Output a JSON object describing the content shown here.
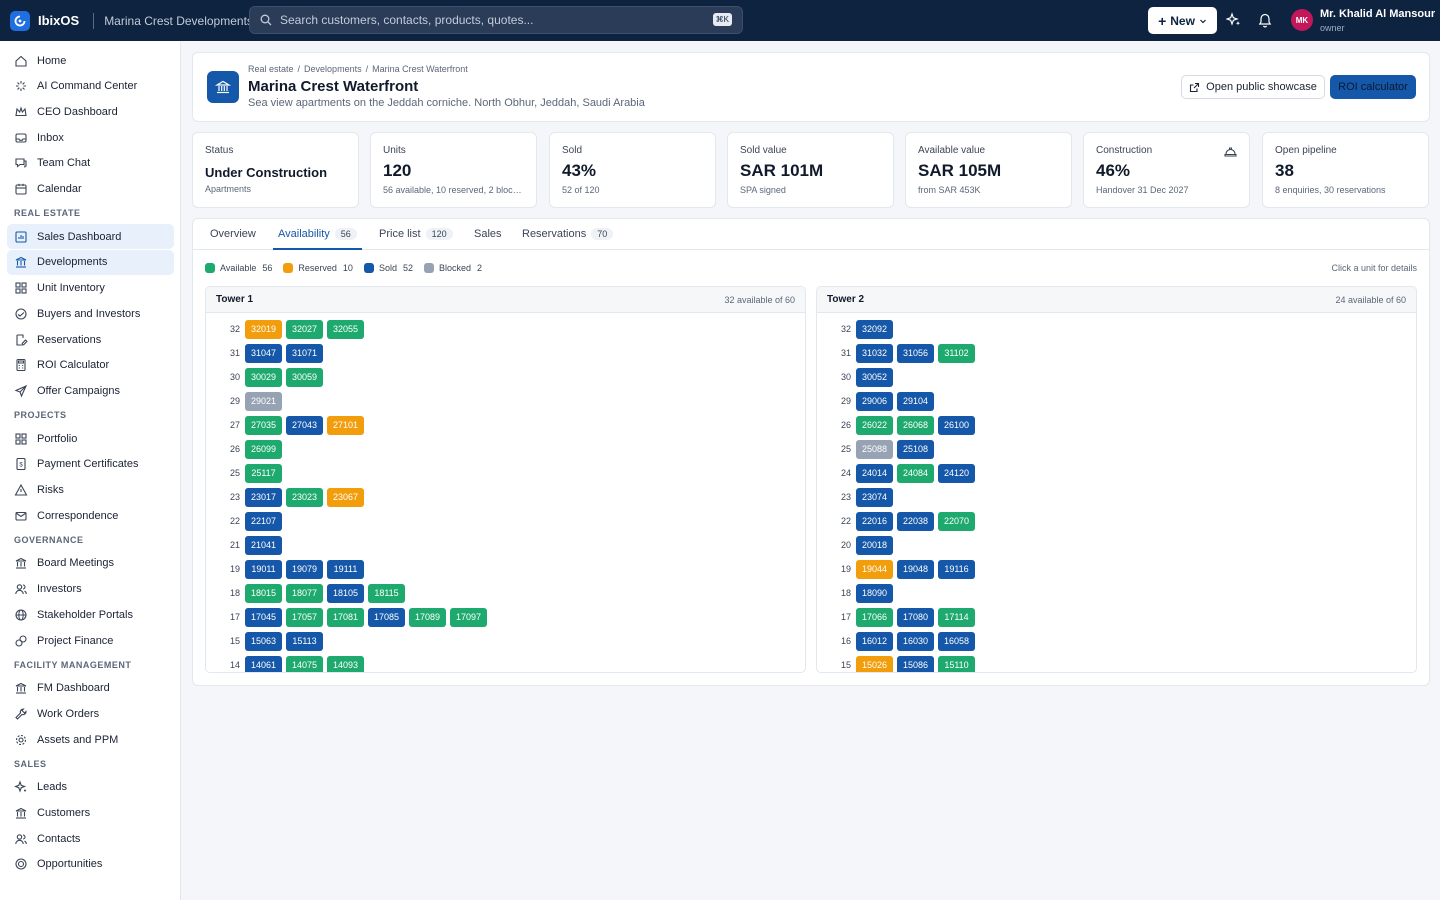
{
  "app": {
    "name": "IbixOS",
    "org": "Marina Crest Developments",
    "search_placeholder": "Search customers, contacts, products, quotes...",
    "search_shortcut": "⌘K",
    "new_label": "New",
    "user_initials": "MK",
    "user_name": "Mr. Khalid Al Mansour",
    "user_role": "owner"
  },
  "sidebar": {
    "top": [
      {
        "label": "Home",
        "icon": "home-icon"
      },
      {
        "label": "AI Command Center",
        "icon": "ai-icon"
      },
      {
        "label": "CEO Dashboard",
        "icon": "crown-icon"
      },
      {
        "label": "Inbox",
        "icon": "inbox-icon"
      },
      {
        "label": "Team Chat",
        "icon": "chat-icon"
      },
      {
        "label": "Calendar",
        "icon": "calendar-icon"
      }
    ],
    "sections": [
      {
        "title": "REAL ESTATE",
        "items": [
          {
            "label": "Sales Dashboard",
            "icon": "dashboard-icon",
            "active": true
          },
          {
            "label": "Developments",
            "icon": "building-icon",
            "active": true
          },
          {
            "label": "Unit Inventory",
            "icon": "grid-icon"
          },
          {
            "label": "Buyers and Investors",
            "icon": "handshake-icon"
          },
          {
            "label": "Reservations",
            "icon": "edit-icon"
          },
          {
            "label": "ROI Calculator",
            "icon": "calculator-icon"
          },
          {
            "label": "Offer Campaigns",
            "icon": "send-icon"
          }
        ]
      },
      {
        "title": "PROJECTS",
        "items": [
          {
            "label": "Portfolio",
            "icon": "grid-icon"
          },
          {
            "label": "Payment Certificates",
            "icon": "certificate-icon"
          },
          {
            "label": "Risks",
            "icon": "warning-icon"
          },
          {
            "label": "Correspondence",
            "icon": "mail-icon"
          }
        ]
      },
      {
        "title": "GOVERNANCE",
        "items": [
          {
            "label": "Board Meetings",
            "icon": "bank-icon"
          },
          {
            "label": "Investors",
            "icon": "users-icon"
          },
          {
            "label": "Stakeholder Portals",
            "icon": "globe-icon"
          },
          {
            "label": "Project Finance",
            "icon": "finance-icon"
          }
        ]
      },
      {
        "title": "FACILITY MANAGEMENT",
        "items": [
          {
            "label": "FM Dashboard",
            "icon": "building-icon"
          },
          {
            "label": "Work Orders",
            "icon": "wrench-icon"
          },
          {
            "label": "Assets and PPM",
            "icon": "gear-icon"
          }
        ]
      },
      {
        "title": "SALES",
        "items": [
          {
            "label": "Leads",
            "icon": "sparkle-icon"
          },
          {
            "label": "Customers",
            "icon": "building-icon"
          },
          {
            "label": "Contacts",
            "icon": "users-icon"
          },
          {
            "label": "Opportunities",
            "icon": "target-icon"
          }
        ]
      }
    ]
  },
  "header": {
    "breadcrumbs": [
      "Real estate",
      "/",
      "Developments",
      "/",
      "Marina Crest Waterfront"
    ],
    "title": "Marina Crest Waterfront",
    "subtitle": "Sea view apartments on the Jeddah corniche. North Obhur, Jeddah, Saudi Arabia",
    "open_showcase": "Open public showcase",
    "roi_button": "ROI calculator"
  },
  "stats": [
    {
      "label": "Status",
      "value": "Under Construction",
      "note": "Apartments"
    },
    {
      "label": "Units",
      "value": "120",
      "note": "56 available, 10 reserved, 2 blocked"
    },
    {
      "label": "Sold",
      "value": "43%",
      "note": "52 of 120"
    },
    {
      "label": "Sold value",
      "value": "SAR 101M",
      "note": "SPA signed"
    },
    {
      "label": "Available value",
      "value": "SAR 105M",
      "note": "from SAR 453K"
    },
    {
      "label": "Construction",
      "value": "46%",
      "note": "Handover 31 Dec 2027"
    },
    {
      "label": "Open pipeline",
      "value": "38",
      "note": "8 enquiries, 30 reservations"
    }
  ],
  "tabs": [
    {
      "label": "Overview",
      "badge": ""
    },
    {
      "label": "Availability",
      "badge": "56",
      "active": true
    },
    {
      "label": "Price list",
      "badge": "120"
    },
    {
      "label": "Sales",
      "badge": ""
    },
    {
      "label": "Reservations",
      "badge": "70"
    }
  ],
  "legend": [
    {
      "label": "Available",
      "count": "56",
      "color": "#1eaa6e"
    },
    {
      "label": "Reserved",
      "count": "10",
      "color": "#f29d0b"
    },
    {
      "label": "Sold",
      "count": "52",
      "color": "#1557a8"
    },
    {
      "label": "Blocked",
      "count": "2",
      "color": "#97a3b4"
    }
  ],
  "hint": "Click a unit for details",
  "towers": [
    {
      "name": "Tower 1",
      "availability": "32 available of 60",
      "floors": [
        {
          "floor": "32",
          "units": [
            [
              "32019",
              "reserved"
            ],
            [
              "32027",
              "available"
            ],
            [
              "32055",
              "available"
            ]
          ]
        },
        {
          "floor": "31",
          "units": [
            [
              "31047",
              "sold"
            ],
            [
              "31071",
              "sold"
            ]
          ]
        },
        {
          "floor": "30",
          "units": [
            [
              "30029",
              "available"
            ],
            [
              "30059",
              "available"
            ]
          ]
        },
        {
          "floor": "29",
          "units": [
            [
              "29021",
              "blocked"
            ]
          ]
        },
        {
          "floor": "27",
          "units": [
            [
              "27035",
              "available"
            ],
            [
              "27043",
              "sold"
            ],
            [
              "27101",
              "reserved"
            ]
          ]
        },
        {
          "floor": "26",
          "units": [
            [
              "26099",
              "available"
            ]
          ]
        },
        {
          "floor": "25",
          "units": [
            [
              "25117",
              "available"
            ]
          ]
        },
        {
          "floor": "23",
          "units": [
            [
              "23017",
              "sold"
            ],
            [
              "23023",
              "available"
            ],
            [
              "23067",
              "reserved"
            ]
          ]
        },
        {
          "floor": "22",
          "units": [
            [
              "22107",
              "sold"
            ]
          ]
        },
        {
          "floor": "21",
          "units": [
            [
              "21041",
              "sold"
            ]
          ]
        },
        {
          "floor": "19",
          "units": [
            [
              "19011",
              "sold"
            ],
            [
              "19079",
              "sold"
            ],
            [
              "19111",
              "sold"
            ]
          ]
        },
        {
          "floor": "18",
          "units": [
            [
              "18015",
              "available"
            ],
            [
              "18077",
              "available"
            ],
            [
              "18105",
              "sold"
            ],
            [
              "18115",
              "available"
            ]
          ]
        },
        {
          "floor": "17",
          "units": [
            [
              "17045",
              "sold"
            ],
            [
              "17057",
              "available"
            ],
            [
              "17081",
              "available"
            ],
            [
              "17085",
              "sold"
            ],
            [
              "17089",
              "available"
            ],
            [
              "17097",
              "available"
            ]
          ]
        },
        {
          "floor": "15",
          "units": [
            [
              "15063",
              "sold"
            ],
            [
              "15113",
              "sold"
            ]
          ]
        },
        {
          "floor": "14",
          "units": [
            [
              "14061",
              "sold"
            ],
            [
              "14075",
              "available"
            ],
            [
              "14093",
              "available"
            ]
          ]
        }
      ]
    },
    {
      "name": "Tower 2",
      "availability": "24 available of 60",
      "floors": [
        {
          "floor": "32",
          "units": [
            [
              "32092",
              "sold"
            ]
          ]
        },
        {
          "floor": "31",
          "units": [
            [
              "31032",
              "sold"
            ],
            [
              "31056",
              "sold"
            ],
            [
              "31102",
              "available"
            ]
          ]
        },
        {
          "floor": "30",
          "units": [
            [
              "30052",
              "sold"
            ]
          ]
        },
        {
          "floor": "29",
          "units": [
            [
              "29006",
              "sold"
            ],
            [
              "29104",
              "sold"
            ]
          ]
        },
        {
          "floor": "26",
          "units": [
            [
              "26022",
              "available"
            ],
            [
              "26068",
              "available"
            ],
            [
              "26100",
              "sold"
            ]
          ]
        },
        {
          "floor": "25",
          "units": [
            [
              "25088",
              "blocked"
            ],
            [
              "25108",
              "sold"
            ]
          ]
        },
        {
          "floor": "24",
          "units": [
            [
              "24014",
              "sold"
            ],
            [
              "24084",
              "available"
            ],
            [
              "24120",
              "sold"
            ]
          ]
        },
        {
          "floor": "23",
          "units": [
            [
              "23074",
              "sold"
            ]
          ]
        },
        {
          "floor": "22",
          "units": [
            [
              "22016",
              "sold"
            ],
            [
              "22038",
              "sold"
            ],
            [
              "22070",
              "available"
            ]
          ]
        },
        {
          "floor": "20",
          "units": [
            [
              "20018",
              "sold"
            ]
          ]
        },
        {
          "floor": "19",
          "units": [
            [
              "19044",
              "reserved"
            ],
            [
              "19048",
              "sold"
            ],
            [
              "19116",
              "sold"
            ]
          ]
        },
        {
          "floor": "18",
          "units": [
            [
              "18090",
              "sold"
            ]
          ]
        },
        {
          "floor": "17",
          "units": [
            [
              "17066",
              "available"
            ],
            [
              "17080",
              "sold"
            ],
            [
              "17114",
              "available"
            ]
          ]
        },
        {
          "floor": "16",
          "units": [
            [
              "16012",
              "sold"
            ],
            [
              "16030",
              "sold"
            ],
            [
              "16058",
              "sold"
            ]
          ]
        },
        {
          "floor": "15",
          "units": [
            [
              "15026",
              "reserved"
            ],
            [
              "15086",
              "sold"
            ],
            [
              "15110",
              "available"
            ]
          ]
        }
      ]
    }
  ]
}
